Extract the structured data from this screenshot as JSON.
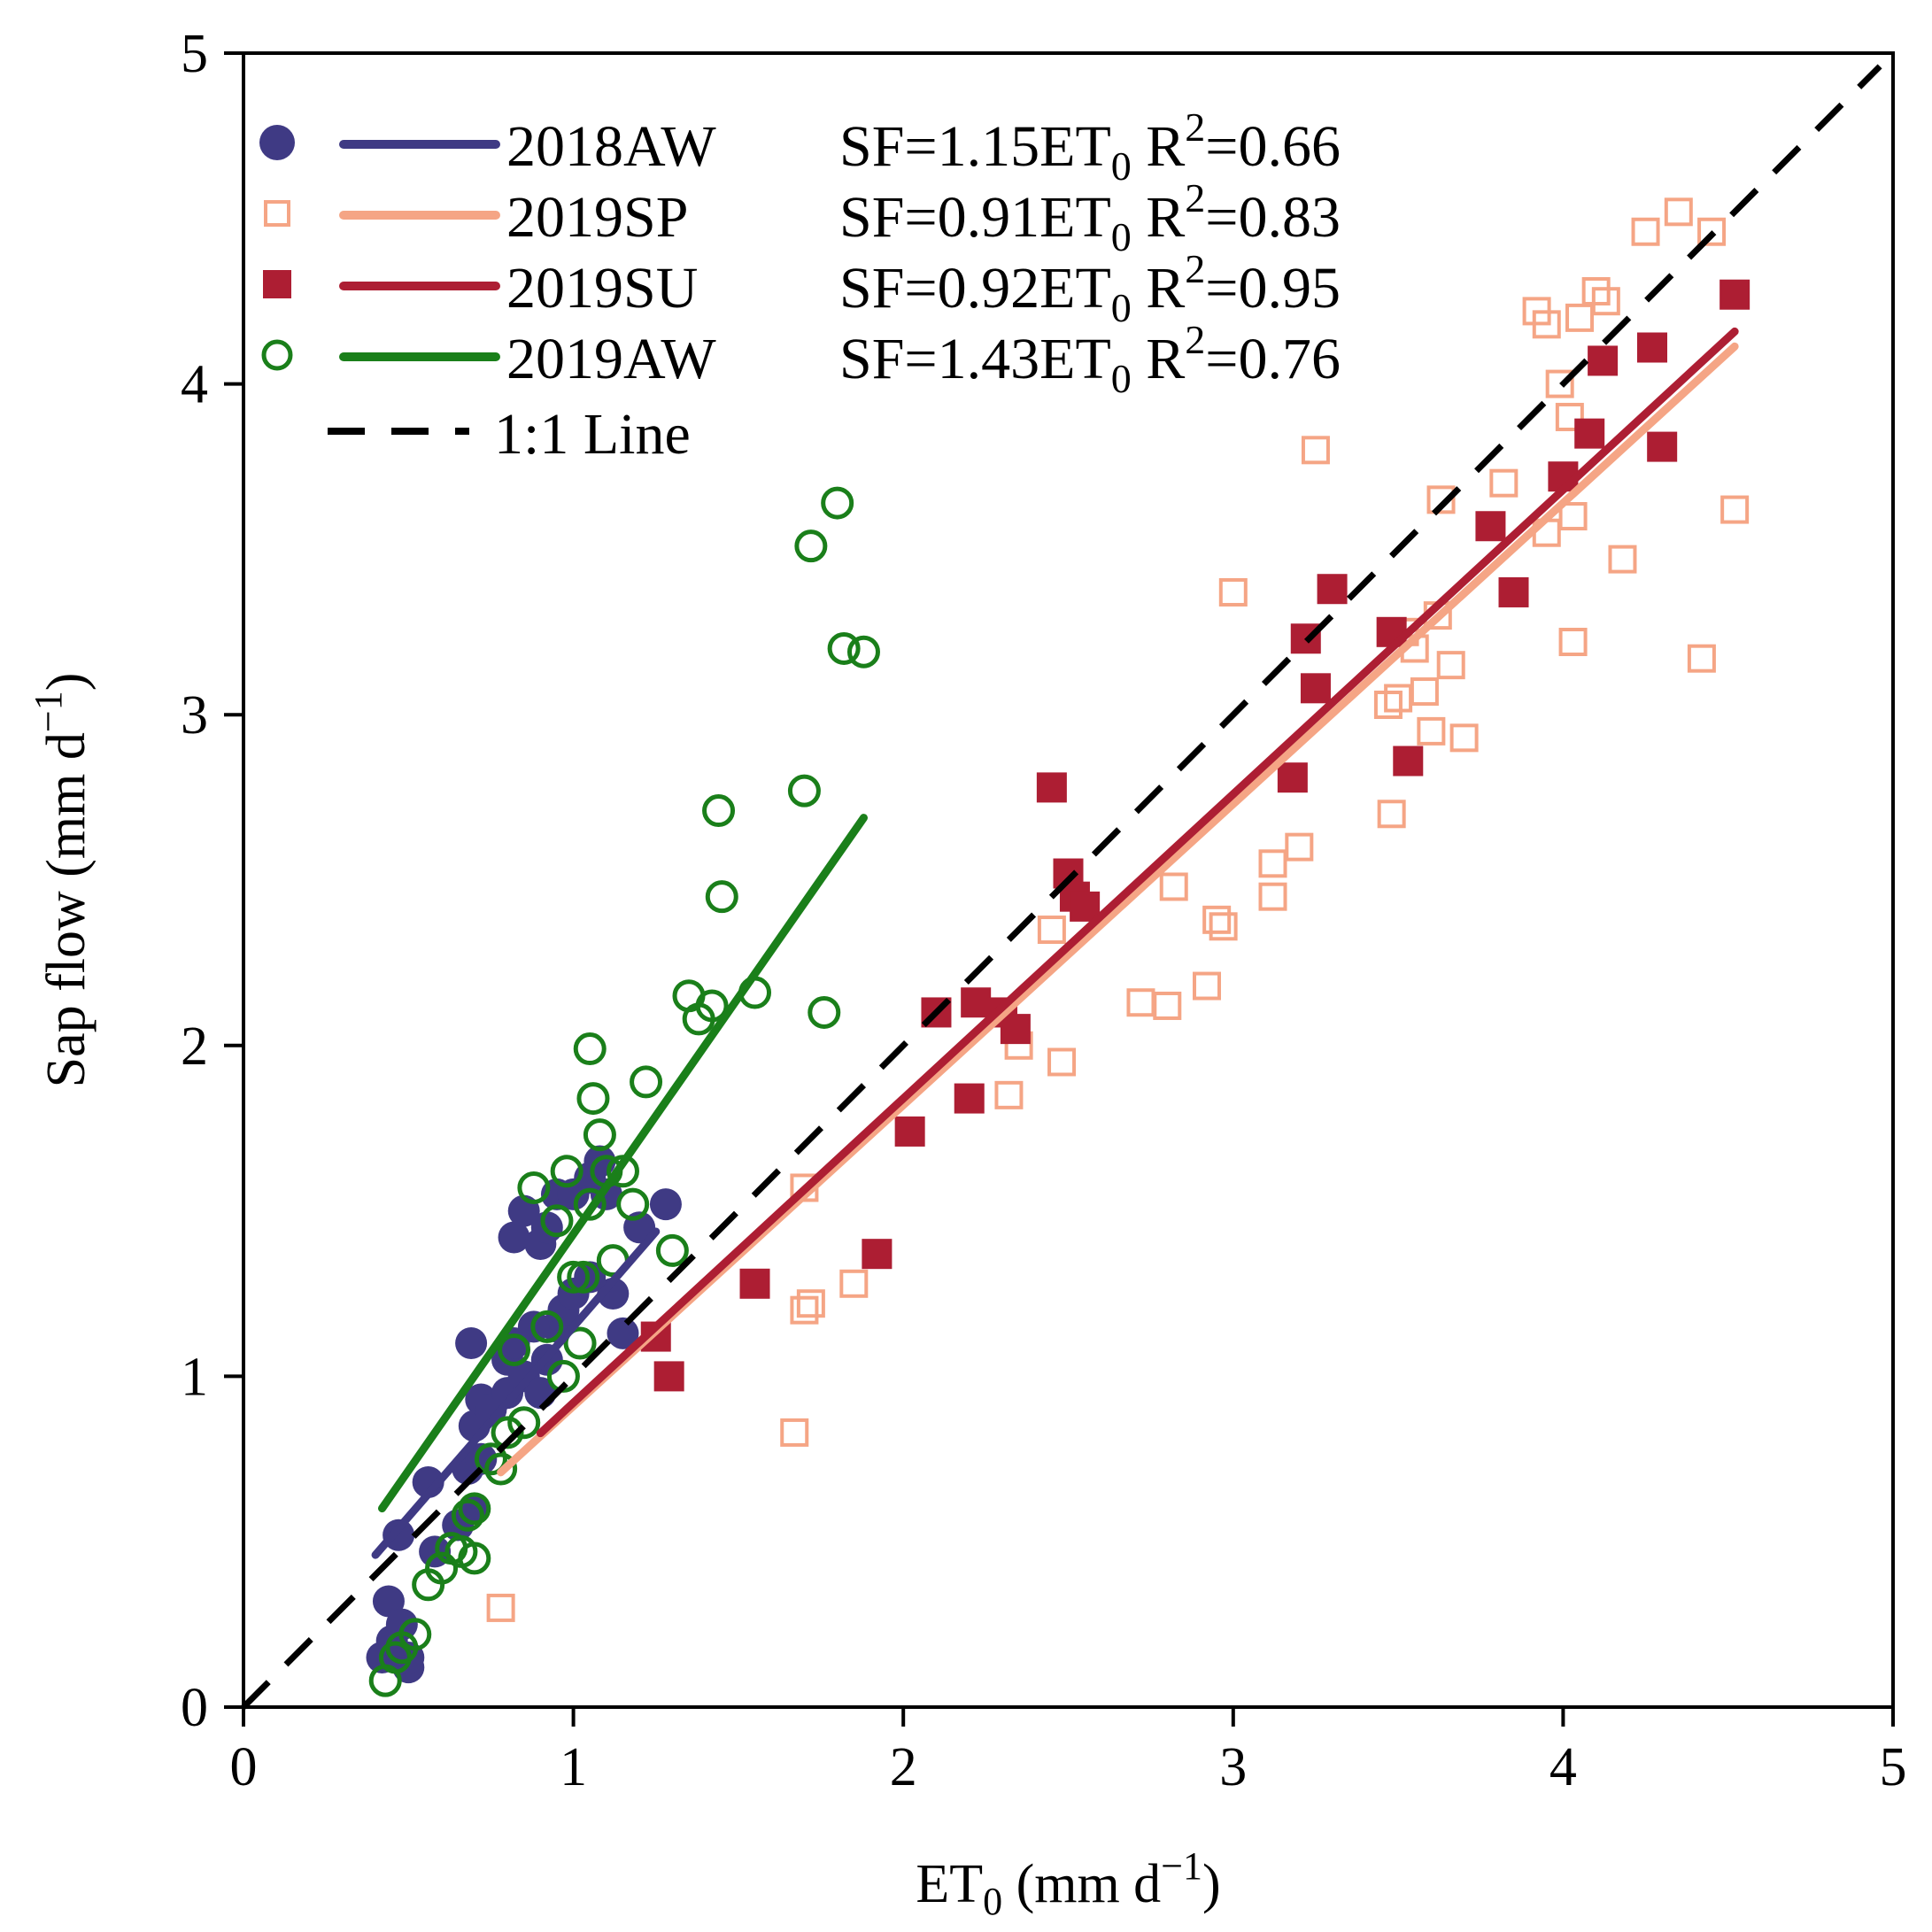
{
  "chart_data": {
    "type": "scatter",
    "xlabel": "ET0 (mm d−1)",
    "ylabel": "Sap flow (mm d−1)",
    "xlabel_parts": {
      "main": "ET",
      "sub": "0",
      "unit": " (mm d",
      "sup": "−1",
      "close": ")"
    },
    "ylabel_parts": {
      "main": "Sap flow (mm d",
      "sup": "−1",
      "close": ")"
    },
    "xlim": [
      0,
      5
    ],
    "ylim": [
      0,
      5
    ],
    "xticks": [
      0,
      1,
      2,
      3,
      4,
      5
    ],
    "yticks": [
      0,
      1,
      2,
      3,
      4,
      5
    ],
    "grid": false,
    "legend_position": "top-left",
    "series": [
      {
        "name": "2018AW",
        "marker": "filled-circle",
        "color": "#3f3a84",
        "fit_label": "SF=1.15ET0 R2=0.66",
        "fit_parts": {
          "a": "SF=1.15ET",
          "sub": "0",
          "b": " R",
          "sup": "2",
          "c": "=0.66"
        },
        "fit_slope": 1.15,
        "fit_range": [
          0.4,
          1.25
        ],
        "points": [
          [
            0.42,
            0.15
          ],
          [
            0.45,
            0.2
          ],
          [
            0.44,
            0.32
          ],
          [
            0.48,
            0.25
          ],
          [
            0.5,
            0.12
          ],
          [
            0.5,
            0.15
          ],
          [
            0.47,
            0.52
          ],
          [
            0.56,
            0.68
          ],
          [
            0.58,
            0.47
          ],
          [
            0.65,
            0.55
          ],
          [
            0.7,
            0.6
          ],
          [
            0.68,
            0.72
          ],
          [
            0.72,
            0.75
          ],
          [
            0.7,
            0.85
          ],
          [
            0.72,
            0.93
          ],
          [
            0.75,
            0.9
          ],
          [
            0.8,
            0.95
          ],
          [
            0.8,
            1.05
          ],
          [
            0.82,
            1.1
          ],
          [
            0.69,
            1.1
          ],
          [
            0.85,
            1.0
          ],
          [
            0.9,
            0.95
          ],
          [
            0.92,
            1.05
          ],
          [
            0.95,
            1.15
          ],
          [
            0.88,
            1.15
          ],
          [
            0.97,
            1.2
          ],
          [
            1.0,
            1.25
          ],
          [
            1.05,
            1.3
          ],
          [
            0.82,
            1.42
          ],
          [
            0.85,
            1.5
          ],
          [
            0.9,
            1.4
          ],
          [
            0.92,
            1.45
          ],
          [
            0.95,
            1.55
          ],
          [
            1.0,
            1.55
          ],
          [
            1.05,
            1.6
          ],
          [
            1.08,
            1.65
          ],
          [
            1.1,
            1.55
          ],
          [
            1.15,
            1.13
          ],
          [
            1.2,
            1.45
          ],
          [
            1.28,
            1.52
          ],
          [
            1.12,
            1.25
          ]
        ]
      },
      {
        "name": "2019SP",
        "marker": "open-square",
        "color": "#f5a585",
        "fit_label": "SF=0.91ET0 R2=0.83",
        "fit_parts": {
          "a": "SF=0.91ET",
          "sub": "0",
          "b": " R",
          "sup": "2",
          "c": "=0.83"
        },
        "fit_slope": 0.91,
        "fit_range": [
          0.78,
          4.52
        ],
        "points": [
          [
            0.78,
            0.3
          ],
          [
            1.67,
            0.83
          ],
          [
            1.7,
            1.2
          ],
          [
            1.72,
            1.22
          ],
          [
            1.7,
            1.57
          ],
          [
            1.85,
            1.28
          ],
          [
            2.32,
            1.85
          ],
          [
            2.35,
            2.0
          ],
          [
            2.45,
            2.35
          ],
          [
            2.48,
            1.95
          ],
          [
            2.72,
            2.13
          ],
          [
            2.8,
            2.12
          ],
          [
            2.82,
            2.48
          ],
          [
            2.92,
            2.18
          ],
          [
            2.95,
            2.38
          ],
          [
            2.97,
            2.36
          ],
          [
            3.0,
            3.37
          ],
          [
            3.12,
            2.55
          ],
          [
            3.12,
            2.45
          ],
          [
            3.2,
            2.6
          ],
          [
            3.25,
            3.8
          ],
          [
            3.47,
            3.03
          ],
          [
            3.48,
            2.7
          ],
          [
            3.5,
            3.05
          ],
          [
            3.52,
            3.25
          ],
          [
            3.55,
            3.2
          ],
          [
            3.58,
            3.07
          ],
          [
            3.6,
            2.95
          ],
          [
            3.62,
            3.3
          ],
          [
            3.63,
            3.65
          ],
          [
            3.66,
            3.15
          ],
          [
            3.7,
            2.93
          ],
          [
            3.82,
            3.7
          ],
          [
            3.92,
            4.22
          ],
          [
            3.95,
            4.18
          ],
          [
            3.95,
            3.55
          ],
          [
            3.99,
            4.0
          ],
          [
            4.02,
            3.9
          ],
          [
            4.03,
            3.22
          ],
          [
            4.05,
            4.2
          ],
          [
            4.03,
            3.6
          ],
          [
            4.1,
            4.28
          ],
          [
            4.13,
            4.25
          ],
          [
            4.18,
            3.47
          ],
          [
            4.25,
            4.46
          ],
          [
            4.35,
            4.52
          ],
          [
            4.42,
            3.17
          ],
          [
            4.45,
            4.46
          ],
          [
            4.52,
            3.62
          ]
        ]
      },
      {
        "name": "2019SU",
        "marker": "filled-square",
        "color": "#ad1e33",
        "fit_label": "SF=0.92ET0 R2=0.95",
        "fit_parts": {
          "a": "SF=0.92ET",
          "sub": "0",
          "b": " R",
          "sup": "2",
          "c": "=0.95"
        },
        "fit_slope": 0.92,
        "fit_range": [
          0.9,
          4.52
        ],
        "points": [
          [
            1.25,
            1.12
          ],
          [
            1.29,
            1.0
          ],
          [
            1.55,
            1.28
          ],
          [
            1.92,
            1.37
          ],
          [
            2.02,
            1.74
          ],
          [
            2.1,
            2.1
          ],
          [
            2.2,
            1.84
          ],
          [
            2.22,
            2.13
          ],
          [
            2.3,
            2.1
          ],
          [
            2.34,
            2.05
          ],
          [
            2.45,
            2.78
          ],
          [
            2.5,
            2.52
          ],
          [
            2.52,
            2.45
          ],
          [
            2.55,
            2.42
          ],
          [
            3.18,
            2.81
          ],
          [
            3.22,
            3.23
          ],
          [
            3.25,
            3.08
          ],
          [
            3.3,
            3.38
          ],
          [
            3.48,
            3.25
          ],
          [
            3.53,
            2.86
          ],
          [
            3.78,
            3.57
          ],
          [
            3.85,
            3.37
          ],
          [
            4.0,
            3.72
          ],
          [
            4.08,
            3.85
          ],
          [
            4.12,
            4.07
          ],
          [
            4.27,
            4.11
          ],
          [
            4.3,
            3.81
          ],
          [
            4.52,
            4.27
          ]
        ]
      },
      {
        "name": "2019AW",
        "marker": "open-circle",
        "color": "#1a7f1a",
        "fit_label": "SF=1.43ET0 R2=0.76",
        "fit_parts": {
          "a": "SF=1.43ET",
          "sub": "0",
          "b": " R",
          "sup": "2",
          "c": "=0.76"
        },
        "fit_slope": 1.43,
        "fit_range": [
          0.42,
          1.88
        ],
        "points": [
          [
            0.43,
            0.08
          ],
          [
            0.46,
            0.15
          ],
          [
            0.48,
            0.18
          ],
          [
            0.52,
            0.22
          ],
          [
            0.56,
            0.37
          ],
          [
            0.6,
            0.42
          ],
          [
            0.63,
            0.48
          ],
          [
            0.66,
            0.47
          ],
          [
            0.68,
            0.58
          ],
          [
            0.7,
            0.6
          ],
          [
            0.7,
            0.45
          ],
          [
            0.75,
            0.75
          ],
          [
            0.78,
            0.72
          ],
          [
            0.8,
            0.83
          ],
          [
            0.82,
            1.08
          ],
          [
            0.85,
            0.86
          ],
          [
            0.88,
            1.57
          ],
          [
            0.92,
            1.15
          ],
          [
            0.95,
            1.47
          ],
          [
            0.98,
            1.62
          ],
          [
            0.97,
            1.0
          ],
          [
            1.0,
            1.3
          ],
          [
            1.02,
            1.1
          ],
          [
            1.03,
            1.3
          ],
          [
            1.05,
            1.52
          ],
          [
            1.05,
            1.99
          ],
          [
            1.06,
            1.84
          ],
          [
            1.08,
            1.73
          ],
          [
            1.1,
            1.62
          ],
          [
            1.12,
            1.35
          ],
          [
            1.15,
            1.62
          ],
          [
            1.18,
            1.52
          ],
          [
            1.22,
            1.89
          ],
          [
            1.3,
            1.38
          ],
          [
            1.35,
            2.15
          ],
          [
            1.38,
            2.08
          ],
          [
            1.42,
            2.12
          ],
          [
            1.44,
            2.71
          ],
          [
            1.45,
            2.45
          ],
          [
            1.55,
            2.16
          ],
          [
            1.7,
            2.77
          ],
          [
            1.72,
            3.51
          ],
          [
            1.76,
            2.1
          ],
          [
            1.8,
            3.64
          ],
          [
            1.82,
            3.2
          ],
          [
            1.88,
            3.19
          ]
        ]
      }
    ],
    "reference_line": {
      "name": "1:1 Line",
      "style": "dashed",
      "color": "#000000",
      "slope": 1
    }
  }
}
